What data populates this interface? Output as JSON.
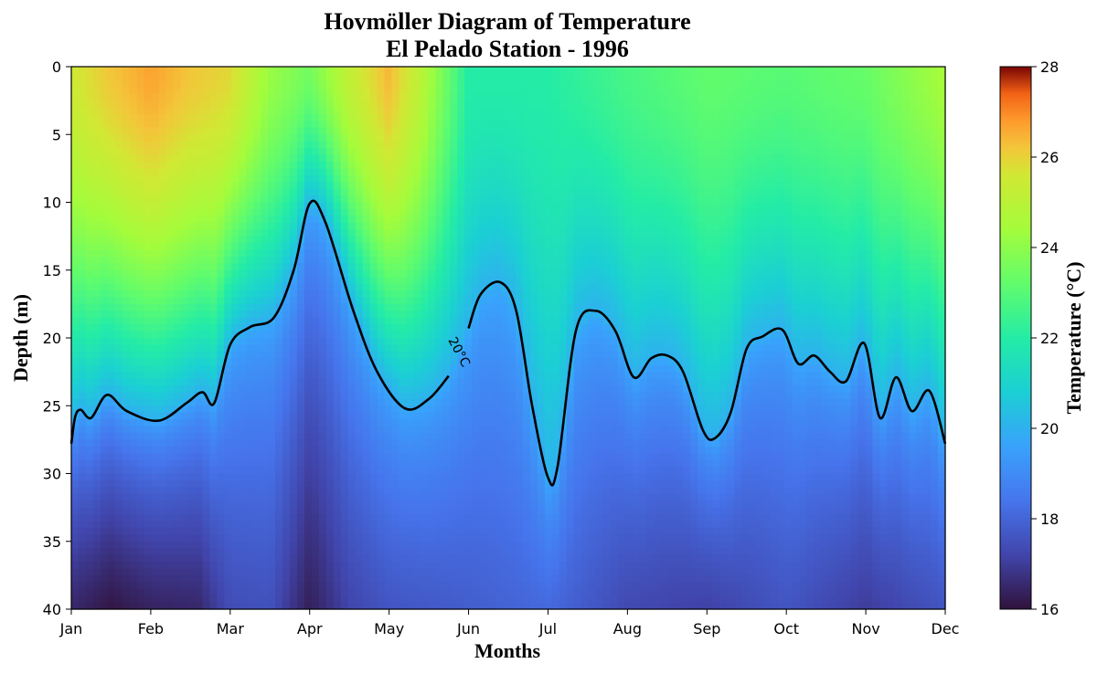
{
  "chart_data": {
    "type": "heatmap",
    "title_line1": "Hovmöller Diagram of Temperature",
    "title_line2": "El Pelado Station - 1996",
    "xlabel": "Months",
    "ylabel": "Depth (m)",
    "colorbar_label": "Temperature (°C)",
    "colormap": "turbo",
    "x_ticks": [
      "Jan",
      "Feb",
      "Mar",
      "Apr",
      "May",
      "Jun",
      "Jul",
      "Aug",
      "Sep",
      "Oct",
      "Nov",
      "Dec"
    ],
    "y_ticks": [
      0,
      5,
      10,
      15,
      20,
      25,
      30,
      35,
      40
    ],
    "y_range": [
      0,
      40
    ],
    "y_inverted": true,
    "color_range": [
      16,
      28
    ],
    "colorbar_ticks": [
      16,
      18,
      20,
      22,
      24,
      26,
      28
    ],
    "surface_temperature": [
      {
        "month": 0.0,
        "temp": 25.5
      },
      {
        "month": 0.5,
        "temp": 26.2
      },
      {
        "month": 1.0,
        "temp": 26.7
      },
      {
        "month": 1.5,
        "temp": 26.2
      },
      {
        "month": 2.0,
        "temp": 25.9
      },
      {
        "month": 2.5,
        "temp": 24.2
      },
      {
        "month": 3.0,
        "temp": 23.5
      },
      {
        "month": 3.5,
        "temp": 25.2
      },
      {
        "month": 4.0,
        "temp": 26.4
      },
      {
        "month": 4.4,
        "temp": 25.0
      },
      {
        "month": 5.0,
        "temp": 22.0
      },
      {
        "month": 6.0,
        "temp": 22.0
      },
      {
        "month": 7.0,
        "temp": 22.7
      },
      {
        "month": 8.0,
        "temp": 23.2
      },
      {
        "month": 9.0,
        "temp": 23.0
      },
      {
        "month": 10.0,
        "temp": 23.3
      },
      {
        "month": 11.0,
        "temp": 24.5
      }
    ],
    "bottom_temperature": [
      {
        "month": 0.0,
        "temp": 16.5
      },
      {
        "month": 0.5,
        "temp": 16.1
      },
      {
        "month": 1.0,
        "temp": 16.4
      },
      {
        "month": 1.6,
        "temp": 16.5
      },
      {
        "month": 2.0,
        "temp": 17.4
      },
      {
        "month": 2.5,
        "temp": 17.5
      },
      {
        "month": 3.0,
        "temp": 16.3
      },
      {
        "month": 3.5,
        "temp": 17.2
      },
      {
        "month": 4.0,
        "temp": 17.6
      },
      {
        "month": 5.0,
        "temp": 17.8
      },
      {
        "month": 6.0,
        "temp": 18.1
      },
      {
        "month": 7.0,
        "temp": 17.3
      },
      {
        "month": 8.0,
        "temp": 17.1
      },
      {
        "month": 9.0,
        "temp": 17.6
      },
      {
        "month": 10.0,
        "temp": 17.0
      },
      {
        "month": 11.0,
        "temp": 17.6
      }
    ],
    "contour_20C": {
      "label": "20°C",
      "points": [
        {
          "month": 0.0,
          "depth": 27.8
        },
        {
          "month": 0.05,
          "depth": 25.8
        },
        {
          "month": 0.12,
          "depth": 25.3
        },
        {
          "month": 0.25,
          "depth": 25.9
        },
        {
          "month": 0.45,
          "depth": 24.2
        },
        {
          "month": 0.7,
          "depth": 25.4
        },
        {
          "month": 1.1,
          "depth": 26.1
        },
        {
          "month": 1.45,
          "depth": 24.8
        },
        {
          "month": 1.65,
          "depth": 24.0
        },
        {
          "month": 1.8,
          "depth": 24.8
        },
        {
          "month": 2.0,
          "depth": 20.5
        },
        {
          "month": 2.25,
          "depth": 19.2
        },
        {
          "month": 2.55,
          "depth": 18.5
        },
        {
          "month": 2.8,
          "depth": 15.0
        },
        {
          "month": 3.0,
          "depth": 10.1
        },
        {
          "month": 3.2,
          "depth": 11.5
        },
        {
          "month": 3.55,
          "depth": 18.0
        },
        {
          "month": 3.85,
          "depth": 22.5
        },
        {
          "month": 4.2,
          "depth": 25.2
        },
        {
          "month": 4.5,
          "depth": 24.5
        },
        {
          "month": 4.75,
          "depth": 22.8
        },
        {
          "month": 5.0,
          "depth": 19.3
        },
        {
          "month": 5.15,
          "depth": 16.8
        },
        {
          "month": 5.4,
          "depth": 15.9
        },
        {
          "month": 5.6,
          "depth": 18.0
        },
        {
          "month": 5.8,
          "depth": 25.0
        },
        {
          "month": 6.0,
          "depth": 30.3
        },
        {
          "month": 6.12,
          "depth": 29.5
        },
        {
          "month": 6.35,
          "depth": 19.5
        },
        {
          "month": 6.6,
          "depth": 18.0
        },
        {
          "month": 6.85,
          "depth": 19.5
        },
        {
          "month": 7.08,
          "depth": 22.9
        },
        {
          "month": 7.3,
          "depth": 21.5
        },
        {
          "month": 7.5,
          "depth": 21.3
        },
        {
          "month": 7.7,
          "depth": 22.5
        },
        {
          "month": 7.95,
          "depth": 26.8
        },
        {
          "month": 8.1,
          "depth": 27.4
        },
        {
          "month": 8.3,
          "depth": 25.5
        },
        {
          "month": 8.5,
          "depth": 20.8
        },
        {
          "month": 8.7,
          "depth": 19.9
        },
        {
          "month": 8.95,
          "depth": 19.4
        },
        {
          "month": 9.15,
          "depth": 21.9
        },
        {
          "month": 9.35,
          "depth": 21.3
        },
        {
          "month": 9.55,
          "depth": 22.5
        },
        {
          "month": 9.75,
          "depth": 23.2
        },
        {
          "month": 9.98,
          "depth": 20.4
        },
        {
          "month": 10.18,
          "depth": 25.9
        },
        {
          "month": 10.38,
          "depth": 22.9
        },
        {
          "month": 10.58,
          "depth": 25.4
        },
        {
          "month": 10.8,
          "depth": 23.9
        },
        {
          "month": 11.0,
          "depth": 27.8
        }
      ]
    }
  }
}
